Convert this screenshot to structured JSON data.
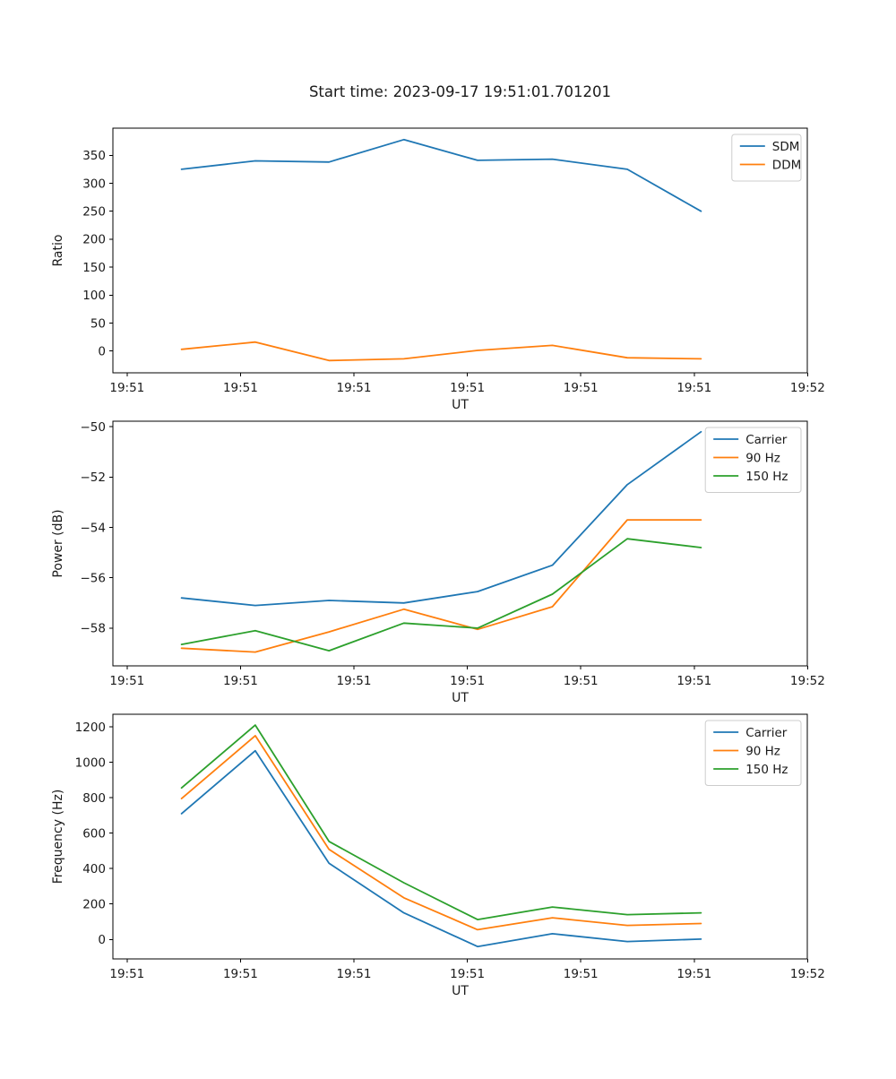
{
  "figure": {
    "title": "Start time: 2023-09-17 19:51:01.701201"
  },
  "colors": {
    "blue": "#1f77b4",
    "orange": "#ff7f0e",
    "green": "#2ca02c",
    "spine": "#000000",
    "text": "#1a1a1a",
    "legend_border": "#cccccc"
  },
  "chart_data": [
    {
      "type": "line",
      "title": "",
      "xlabel": "UT",
      "ylabel": "Ratio",
      "grid": false,
      "legend_position": "upper right",
      "x_seconds": [
        4.8,
        11.3,
        17.8,
        24.4,
        30.9,
        37.5,
        44.1,
        50.6
      ],
      "xlim_seconds": [
        -1.25,
        59.97
      ],
      "ylim": [
        -39,
        398.5
      ],
      "yticks": [
        0,
        50,
        100,
        150,
        200,
        250,
        300,
        350
      ],
      "ytick_labels": [
        "0",
        "50",
        "100",
        "150",
        "200",
        "250",
        "300",
        "350"
      ],
      "xticks_seconds": [
        0,
        10,
        20,
        30,
        40,
        50,
        60
      ],
      "xtick_labels": [
        "19:51",
        "19:51",
        "19:51",
        "19:51",
        "19:51",
        "19:51",
        "19:52"
      ],
      "series": [
        {
          "name": "SDM",
          "color": "#1f77b4",
          "values": [
            325,
            340,
            338,
            378,
            341,
            343,
            325,
            250
          ]
        },
        {
          "name": "DDM",
          "color": "#ff7f0e",
          "values": [
            3,
            16,
            -17,
            -14,
            1,
            10,
            -12,
            -14
          ]
        }
      ]
    },
    {
      "type": "line",
      "title": "",
      "xlabel": "UT",
      "ylabel": "Power (dB)",
      "grid": false,
      "legend_position": "upper right",
      "x_seconds": [
        4.8,
        11.3,
        17.8,
        24.4,
        30.9,
        37.5,
        44.1,
        50.6
      ],
      "xlim_seconds": [
        -1.25,
        59.97
      ],
      "ylim": [
        -59.5,
        -49.78
      ],
      "yticks": [
        -58,
        -56,
        -54,
        -52,
        -50
      ],
      "ytick_labels": [
        "−58",
        "−56",
        "−54",
        "−52",
        "−50"
      ],
      "xticks_seconds": [
        0,
        10,
        20,
        30,
        40,
        50,
        60
      ],
      "xtick_labels": [
        "19:51",
        "19:51",
        "19:51",
        "19:51",
        "19:51",
        "19:51",
        "19:52"
      ],
      "series": [
        {
          "name": "Carrier",
          "color": "#1f77b4",
          "values": [
            -56.8,
            -57.1,
            -56.9,
            -57.0,
            -56.55,
            -55.5,
            -52.3,
            -50.2
          ]
        },
        {
          "name": "90 Hz",
          "color": "#ff7f0e",
          "values": [
            -58.8,
            -58.95,
            -58.15,
            -57.25,
            -58.05,
            -57.15,
            -53.7,
            -53.7
          ]
        },
        {
          "name": "150 Hz",
          "color": "#2ca02c",
          "values": [
            -58.65,
            -58.1,
            -58.9,
            -57.8,
            -58.0,
            -56.65,
            -54.45,
            -54.8
          ]
        }
      ]
    },
    {
      "type": "line",
      "title": "",
      "xlabel": "UT",
      "ylabel": "Frequency (Hz)",
      "grid": false,
      "legend_position": "upper right",
      "x_seconds": [
        4.8,
        11.3,
        17.8,
        24.4,
        30.9,
        37.5,
        44.1,
        50.6
      ],
      "xlim_seconds": [
        -1.25,
        59.97
      ],
      "ylim": [
        -110,
        1271
      ],
      "yticks": [
        0,
        200,
        400,
        600,
        800,
        1000,
        1200
      ],
      "ytick_labels": [
        "0",
        "200",
        "400",
        "600",
        "800",
        "1000",
        "1200"
      ],
      "xticks_seconds": [
        0,
        10,
        20,
        30,
        40,
        50,
        60
      ],
      "xtick_labels": [
        "19:51",
        "19:51",
        "19:51",
        "19:51",
        "19:51",
        "19:51",
        "19:52"
      ],
      "series": [
        {
          "name": "Carrier",
          "color": "#1f77b4",
          "values": [
            710,
            1065,
            430,
            150,
            -40,
            32,
            -12,
            2
          ]
        },
        {
          "name": "90 Hz",
          "color": "#ff7f0e",
          "values": [
            795,
            1150,
            508,
            235,
            55,
            122,
            79,
            90
          ]
        },
        {
          "name": "150 Hz",
          "color": "#2ca02c",
          "values": [
            855,
            1210,
            553,
            320,
            112,
            183,
            140,
            150
          ]
        }
      ]
    }
  ]
}
